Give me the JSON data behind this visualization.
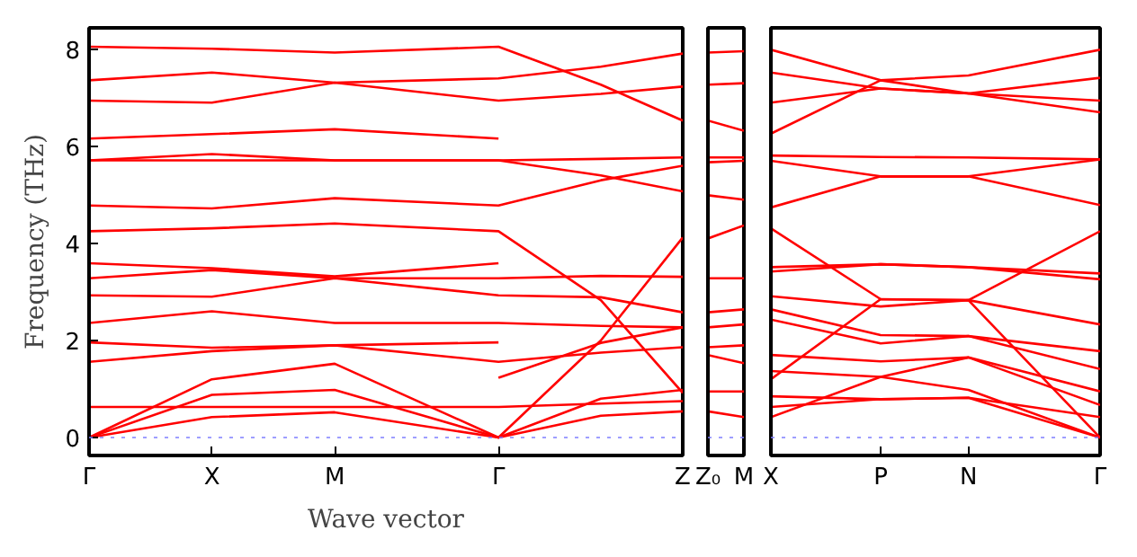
{
  "chart_data": [
    {
      "type": "line",
      "xlabel": "Wave vector",
      "ylabel": "Frequency (THz)",
      "ylim": [
        -0.37,
        8.44
      ],
      "yticks": [
        0,
        2,
        4,
        6,
        8
      ],
      "categories": [
        "Γ",
        null,
        null,
        null,
        null,
        null,
        "X",
        null,
        null,
        null,
        null,
        null,
        "M",
        null,
        null,
        null,
        null,
        null,
        null,
        null,
        "Γ",
        null,
        null,
        null,
        null,
        null,
        null,
        null,
        null,
        "Z"
      ],
      "ref_lines": [
        {
          "axis": "y",
          "value": 0,
          "color": "#7f7fff",
          "line_style": "dotted"
        }
      ],
      "series": [
        {
          "color": "#ff0000",
          "values": [
            8.05,
            null,
            null,
            null,
            null,
            null,
            8.01,
            null,
            null,
            null,
            null,
            null,
            7.93,
            null,
            null,
            null,
            null,
            null,
            null,
            null,
            8.05,
            null,
            null,
            null,
            null,
            7.27,
            null,
            null,
            null,
            6.53
          ]
        },
        {
          "color": "#ff0000",
          "values": [
            7.36,
            null,
            null,
            null,
            null,
            null,
            7.52,
            null,
            null,
            null,
            null,
            null,
            7.31,
            null,
            null,
            null,
            null,
            null,
            null,
            null,
            7.4,
            null,
            null,
            null,
            null,
            7.64,
            null,
            null,
            null,
            7.91
          ]
        },
        {
          "color": "#ff0000",
          "values": [
            6.94,
            null,
            null,
            null,
            null,
            null,
            6.9,
            null,
            null,
            null,
            null,
            null,
            7.31,
            null,
            null,
            null,
            null,
            null,
            null,
            null,
            6.94,
            null,
            null,
            null,
            null,
            7.08,
            null,
            null,
            null,
            7.23
          ]
        },
        {
          "color": "#ff0000",
          "values": [
            6.16,
            null,
            null,
            null,
            null,
            null,
            6.25,
            null,
            null,
            null,
            null,
            null,
            6.35,
            null,
            null,
            null,
            null,
            null,
            null,
            null,
            6.16,
            null,
            null,
            null,
            null,
            null,
            null,
            null,
            null,
            null
          ]
        },
        {
          "color": "#ff0000",
          "values": [
            5.71,
            null,
            null,
            null,
            null,
            null,
            5.84,
            null,
            null,
            null,
            null,
            null,
            5.71,
            null,
            null,
            null,
            null,
            null,
            null,
            null,
            5.71,
            null,
            null,
            null,
            null,
            5.74,
            null,
            null,
            null,
            5.77
          ]
        },
        {
          "color": "#ff0000",
          "values": [
            5.71,
            null,
            null,
            null,
            null,
            null,
            5.71,
            null,
            null,
            null,
            null,
            null,
            5.71,
            null,
            null,
            null,
            null,
            null,
            null,
            null,
            5.71,
            null,
            null,
            null,
            null,
            5.4,
            null,
            null,
            null,
            5.07
          ]
        },
        {
          "color": "#ff0000",
          "values": [
            4.78,
            null,
            null,
            null,
            null,
            null,
            4.72,
            null,
            null,
            null,
            null,
            null,
            4.93,
            null,
            null,
            null,
            null,
            null,
            null,
            null,
            4.78,
            null,
            null,
            null,
            null,
            5.3,
            null,
            null,
            null,
            5.6
          ]
        },
        {
          "color": "#ff0000",
          "values": [
            4.25,
            null,
            null,
            null,
            null,
            null,
            4.31,
            null,
            null,
            null,
            null,
            null,
            4.41,
            null,
            null,
            null,
            null,
            null,
            null,
            null,
            4.25,
            null,
            null,
            null,
            null,
            2.83,
            null,
            null,
            null,
            0.92
          ]
        },
        {
          "color": "#ff0000",
          "values": [
            3.59,
            null,
            null,
            null,
            null,
            null,
            3.49,
            null,
            null,
            null,
            null,
            null,
            3.32,
            null,
            null,
            null,
            null,
            null,
            null,
            null,
            3.59,
            null,
            null,
            null,
            null,
            null,
            null,
            null,
            null,
            null
          ]
        },
        {
          "color": "#ff0000",
          "values": [
            3.28,
            null,
            null,
            null,
            null,
            null,
            3.45,
            null,
            null,
            null,
            null,
            null,
            3.28,
            null,
            null,
            null,
            null,
            null,
            null,
            null,
            3.28,
            null,
            null,
            null,
            null,
            3.33,
            null,
            null,
            null,
            3.31
          ]
        },
        {
          "color": "#ff0000",
          "values": [
            2.93,
            null,
            null,
            null,
            null,
            null,
            2.9,
            null,
            null,
            null,
            null,
            null,
            3.28,
            null,
            null,
            null,
            null,
            null,
            null,
            null,
            2.93,
            null,
            null,
            null,
            null,
            2.89,
            null,
            null,
            null,
            2.58
          ]
        },
        {
          "color": "#ff0000",
          "values": [
            2.36,
            null,
            null,
            null,
            null,
            null,
            2.6,
            null,
            null,
            null,
            null,
            null,
            2.36,
            null,
            null,
            null,
            null,
            null,
            null,
            null,
            2.36,
            null,
            null,
            null,
            null,
            2.3,
            null,
            null,
            null,
            2.27
          ]
        },
        {
          "color": "#ff0000",
          "values": [
            1.96,
            null,
            null,
            null,
            null,
            null,
            1.85,
            null,
            null,
            null,
            null,
            null,
            1.9,
            null,
            null,
            null,
            null,
            null,
            null,
            null,
            1.96,
            null,
            null,
            null,
            null,
            null,
            null,
            null,
            null,
            null
          ]
        },
        {
          "color": "#ff0000",
          "values": [
            1.56,
            null,
            null,
            null,
            null,
            null,
            1.78,
            null,
            null,
            null,
            null,
            null,
            1.9,
            null,
            null,
            null,
            null,
            null,
            null,
            null,
            1.56,
            null,
            null,
            null,
            null,
            1.75,
            null,
            null,
            null,
            1.86
          ]
        },
        {
          "color": "#ff0000",
          "values": [
            null,
            null,
            null,
            null,
            null,
            null,
            null,
            null,
            null,
            null,
            null,
            null,
            null,
            null,
            null,
            null,
            null,
            null,
            null,
            null,
            1.23,
            null,
            null,
            null,
            null,
            1.95,
            null,
            null,
            null,
            2.27
          ]
        },
        {
          "color": "#ff0000",
          "values": [
            0.63,
            null,
            null,
            null,
            null,
            null,
            0.63,
            null,
            null,
            null,
            null,
            null,
            0.63,
            null,
            null,
            null,
            null,
            null,
            null,
            null,
            0.63,
            null,
            null,
            null,
            null,
            0.7,
            null,
            null,
            null,
            0.75
          ]
        },
        {
          "color": "#ff0000",
          "values": [
            0,
            null,
            null,
            null,
            null,
            null,
            0.42,
            null,
            null,
            null,
            null,
            null,
            0.52,
            null,
            null,
            null,
            null,
            null,
            null,
            null,
            0,
            null,
            null,
            null,
            null,
            0.45,
            null,
            null,
            null,
            0.54
          ]
        },
        {
          "color": "#ff0000",
          "values": [
            0,
            null,
            null,
            null,
            null,
            null,
            0.88,
            null,
            null,
            null,
            null,
            null,
            0.98,
            null,
            null,
            null,
            null,
            null,
            null,
            null,
            0,
            null,
            null,
            null,
            null,
            0.8,
            null,
            null,
            null,
            0.98
          ]
        },
        {
          "color": "#ff0000",
          "values": [
            0,
            null,
            null,
            null,
            null,
            null,
            1.2,
            null,
            null,
            null,
            null,
            null,
            1.52,
            null,
            null,
            null,
            null,
            null,
            null,
            null,
            0,
            null,
            null,
            null,
            null,
            2.0,
            null,
            null,
            null,
            4.12
          ]
        }
      ]
    },
    {
      "type": "line",
      "categories": [
        "Z₀",
        "M"
      ],
      "ylim": [
        -0.37,
        8.44
      ],
      "yticks": [
        0,
        2,
        4,
        6,
        8
      ],
      "tick_labels": "x",
      "ref_lines": [
        {
          "axis": "y",
          "value": 0,
          "color": "#7f7fff",
          "line_style": "dotted"
        }
      ],
      "series": [
        {
          "color": "#ff0000",
          "values": [
            7.93,
            7.96
          ]
        },
        {
          "color": "#ff0000",
          "values": [
            7.27,
            7.3
          ]
        },
        {
          "color": "#ff0000",
          "values": [
            6.53,
            6.32
          ]
        },
        {
          "color": "#ff0000",
          "values": [
            5.77,
            5.77
          ]
        },
        {
          "color": "#ff0000",
          "values": [
            5.67,
            5.7
          ]
        },
        {
          "color": "#ff0000",
          "values": [
            4.99,
            4.9
          ]
        },
        {
          "color": "#ff0000",
          "values": [
            4.1,
            4.37
          ]
        },
        {
          "color": "#ff0000",
          "values": [
            3.28,
            3.28
          ]
        },
        {
          "color": "#ff0000",
          "values": [
            2.58,
            2.64
          ]
        },
        {
          "color": "#ff0000",
          "values": [
            2.27,
            2.33
          ]
        },
        {
          "color": "#ff0000",
          "values": [
            1.86,
            1.9
          ]
        },
        {
          "color": "#ff0000",
          "values": [
            1.7,
            1.53
          ]
        },
        {
          "color": "#ff0000",
          "values": [
            0.95,
            0.95
          ]
        },
        {
          "color": "#ff0000",
          "values": [
            0.54,
            0.42
          ]
        }
      ]
    },
    {
      "type": "line",
      "ylim": [
        -0.37,
        8.44
      ],
      "yticks": [
        0,
        2,
        4,
        6,
        8
      ],
      "tick_labels": "x",
      "categories": [
        "X",
        null,
        null,
        null,
        null,
        null,
        null,
        null,
        null,
        null,
        "P",
        null,
        null,
        null,
        null,
        null,
        null,
        null,
        "N",
        null,
        null,
        null,
        null,
        null,
        null,
        null,
        null,
        null,
        null,
        null,
        "Γ"
      ],
      "ref_lines": [
        {
          "axis": "y",
          "value": 0,
          "color": "#7f7fff",
          "line_style": "dotted"
        }
      ],
      "series": [
        {
          "color": "#ff0000",
          "values": [
            7.99,
            null,
            null,
            null,
            null,
            null,
            null,
            null,
            null,
            null,
            7.36,
            null,
            null,
            null,
            null,
            null,
            null,
            null,
            7.46,
            null,
            null,
            null,
            null,
            null,
            null,
            null,
            null,
            null,
            null,
            null,
            7.99
          ]
        },
        {
          "color": "#ff0000",
          "values": [
            7.52,
            null,
            null,
            null,
            null,
            null,
            null,
            null,
            null,
            null,
            7.19,
            null,
            null,
            null,
            null,
            null,
            null,
            null,
            7.09,
            null,
            null,
            null,
            null,
            null,
            null,
            null,
            null,
            null,
            null,
            null,
            7.41
          ]
        },
        {
          "color": "#ff0000",
          "values": [
            6.9,
            null,
            null,
            null,
            null,
            null,
            null,
            null,
            null,
            null,
            7.19,
            null,
            null,
            null,
            null,
            null,
            null,
            null,
            7.09,
            null,
            null,
            null,
            null,
            null,
            null,
            null,
            null,
            null,
            null,
            null,
            6.94
          ]
        },
        {
          "color": "#ff0000",
          "values": [
            6.26,
            null,
            null,
            null,
            null,
            null,
            null,
            null,
            null,
            null,
            7.36,
            null,
            null,
            null,
            null,
            null,
            null,
            null,
            7.09,
            null,
            null,
            null,
            null,
            null,
            null,
            null,
            null,
            null,
            null,
            null,
            6.7
          ]
        },
        {
          "color": "#ff0000",
          "values": [
            5.81,
            null,
            null,
            null,
            null,
            null,
            null,
            null,
            null,
            null,
            5.78,
            null,
            null,
            null,
            null,
            null,
            null,
            null,
            5.77,
            null,
            null,
            null,
            null,
            null,
            null,
            null,
            null,
            null,
            null,
            null,
            5.73
          ]
        },
        {
          "color": "#ff0000",
          "values": [
            5.7,
            null,
            null,
            null,
            null,
            null,
            null,
            null,
            null,
            null,
            5.38,
            null,
            null,
            null,
            null,
            null,
            null,
            null,
            5.38,
            null,
            null,
            null,
            null,
            null,
            null,
            null,
            null,
            null,
            null,
            null,
            5.73
          ]
        },
        {
          "color": "#ff0000",
          "values": [
            4.74,
            null,
            null,
            null,
            null,
            null,
            null,
            null,
            null,
            null,
            5.38,
            null,
            null,
            null,
            null,
            null,
            null,
            null,
            5.38,
            null,
            null,
            null,
            null,
            null,
            null,
            null,
            null,
            null,
            null,
            null,
            4.79
          ]
        },
        {
          "color": "#ff0000",
          "values": [
            4.31,
            null,
            null,
            null,
            null,
            null,
            null,
            null,
            null,
            null,
            2.85,
            null,
            null,
            null,
            null,
            null,
            null,
            null,
            2.83,
            null,
            null,
            null,
            null,
            null,
            null,
            null,
            null,
            null,
            null,
            null,
            4.25
          ]
        },
        {
          "color": "#ff0000",
          "values": [
            3.51,
            null,
            null,
            null,
            null,
            null,
            null,
            null,
            null,
            null,
            3.57,
            null,
            null,
            null,
            null,
            null,
            null,
            null,
            3.51,
            null,
            null,
            null,
            null,
            null,
            null,
            null,
            null,
            null,
            null,
            null,
            3.38
          ]
        },
        {
          "color": "#ff0000",
          "values": [
            3.42,
            null,
            null,
            null,
            null,
            null,
            null,
            null,
            null,
            null,
            3.57,
            null,
            null,
            null,
            null,
            null,
            null,
            null,
            3.51,
            null,
            null,
            null,
            null,
            null,
            null,
            null,
            null,
            null,
            null,
            null,
            3.26
          ]
        },
        {
          "color": "#ff0000",
          "values": [
            2.91,
            null,
            null,
            null,
            null,
            null,
            null,
            null,
            null,
            null,
            2.7,
            null,
            null,
            null,
            null,
            null,
            null,
            null,
            2.83,
            null,
            null,
            null,
            null,
            null,
            null,
            null,
            null,
            null,
            null,
            null,
            2.33
          ]
        },
        {
          "color": "#ff0000",
          "values": [
            2.64,
            null,
            null,
            null,
            null,
            null,
            null,
            null,
            null,
            null,
            2.11,
            null,
            null,
            null,
            null,
            null,
            null,
            null,
            2.09,
            null,
            null,
            null,
            null,
            null,
            null,
            null,
            null,
            null,
            null,
            null,
            1.78
          ]
        },
        {
          "color": "#ff0000",
          "values": [
            2.43,
            null,
            null,
            null,
            null,
            null,
            null,
            null,
            null,
            null,
            1.94,
            null,
            null,
            null,
            null,
            null,
            null,
            null,
            2.09,
            null,
            null,
            null,
            null,
            null,
            null,
            null,
            null,
            null,
            null,
            null,
            1.41
          ]
        },
        {
          "color": "#ff0000",
          "values": [
            1.2,
            null,
            null,
            null,
            null,
            null,
            null,
            null,
            null,
            null,
            2.85,
            null,
            null,
            null,
            null,
            null,
            null,
            null,
            2.83,
            null,
            null,
            null,
            null,
            null,
            null,
            null,
            null,
            null,
            null,
            null,
            0
          ]
        },
        {
          "color": "#ff0000",
          "values": [
            1.7,
            null,
            null,
            null,
            null,
            null,
            null,
            null,
            null,
            null,
            1.57,
            null,
            null,
            null,
            null,
            null,
            null,
            null,
            1.65,
            null,
            null,
            null,
            null,
            null,
            null,
            null,
            null,
            null,
            null,
            null,
            0.67
          ]
        },
        {
          "color": "#ff0000",
          "values": [
            1.37,
            null,
            null,
            null,
            null,
            null,
            null,
            null,
            null,
            null,
            1.25,
            null,
            null,
            null,
            null,
            null,
            null,
            null,
            0.98,
            null,
            null,
            null,
            null,
            null,
            null,
            null,
            null,
            null,
            null,
            null,
            0
          ]
        },
        {
          "color": "#ff0000",
          "values": [
            0.85,
            null,
            null,
            null,
            null,
            null,
            null,
            null,
            null,
            null,
            0.79,
            null,
            null,
            null,
            null,
            null,
            null,
            null,
            0.82,
            null,
            null,
            null,
            null,
            null,
            null,
            null,
            null,
            null,
            null,
            null,
            0.42
          ]
        },
        {
          "color": "#ff0000",
          "values": [
            0.63,
            null,
            null,
            null,
            null,
            null,
            null,
            null,
            null,
            null,
            0.79,
            null,
            null,
            null,
            null,
            null,
            null,
            null,
            0.82,
            null,
            null,
            null,
            null,
            null,
            null,
            null,
            null,
            null,
            null,
            null,
            0
          ]
        },
        {
          "color": "#ff0000",
          "values": [
            0.42,
            null,
            null,
            null,
            null,
            null,
            null,
            null,
            null,
            null,
            1.25,
            null,
            null,
            null,
            null,
            null,
            null,
            null,
            1.65,
            null,
            null,
            null,
            null,
            null,
            null,
            null,
            null,
            null,
            null,
            null,
            0.95
          ]
        }
      ]
    }
  ]
}
